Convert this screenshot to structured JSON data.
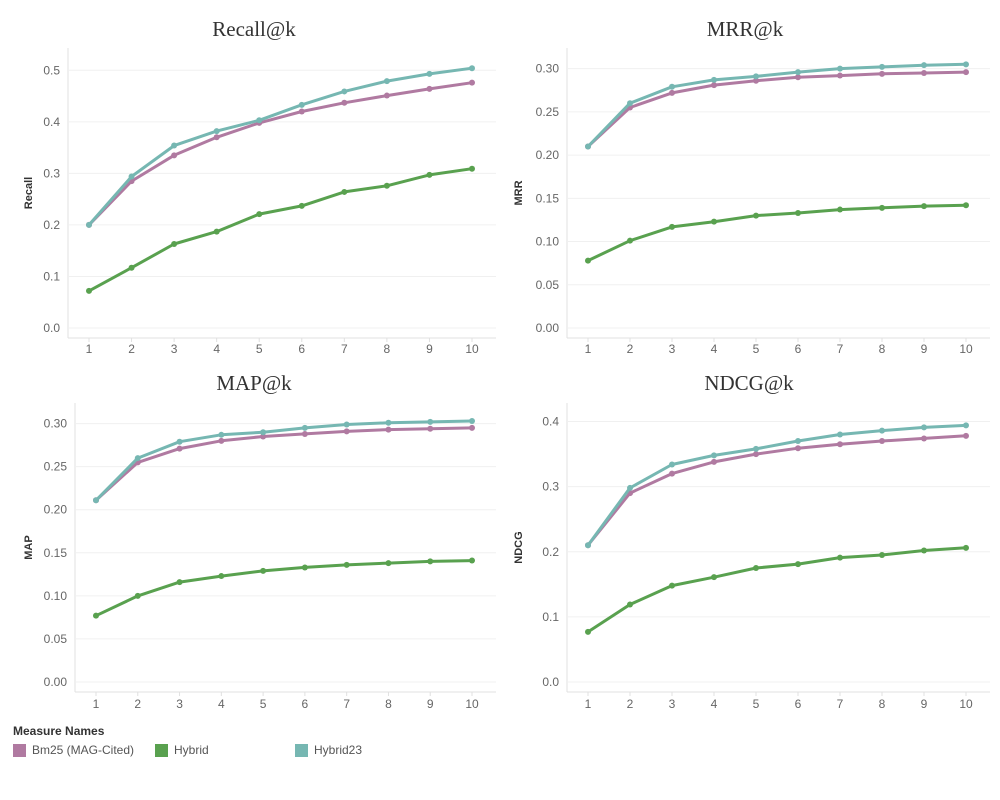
{
  "legend": {
    "title": "Measure Names",
    "items": [
      {
        "name": "Bm25 (MAG-Cited)",
        "color": "#b07aa1"
      },
      {
        "name": "Hybrid",
        "color": "#59a14f"
      },
      {
        "name": "Hybrid23",
        "color": "#76b7b2"
      }
    ]
  },
  "chart_data": [
    {
      "type": "line",
      "title": "Recall@k",
      "xlabel": "",
      "ylabel": "Recall",
      "x": [
        1,
        2,
        3,
        4,
        5,
        6,
        7,
        8,
        9,
        10
      ],
      "ylim": [
        0,
        0.52
      ],
      "yticks": [
        "0.0",
        "0.1",
        "0.2",
        "0.3",
        "0.4",
        "0.5"
      ],
      "grid": true,
      "series": [
        {
          "name": "Bm25 (MAG-Cited)",
          "color": "#b07aa1",
          "values": [
            0.2,
            0.285,
            0.335,
            0.37,
            0.398,
            0.42,
            0.437,
            0.451,
            0.464,
            0.476
          ]
        },
        {
          "name": "Hybrid",
          "color": "#59a14f",
          "values": [
            0.072,
            0.117,
            0.163,
            0.187,
            0.221,
            0.237,
            0.264,
            0.276,
            0.297,
            0.309
          ]
        },
        {
          "name": "Hybrid23",
          "color": "#76b7b2",
          "values": [
            0.2,
            0.294,
            0.354,
            0.382,
            0.403,
            0.433,
            0.459,
            0.479,
            0.493,
            0.504
          ]
        }
      ]
    },
    {
      "type": "line",
      "title": "MRR@k",
      "xlabel": "",
      "ylabel": "MRR",
      "x": [
        1,
        2,
        3,
        4,
        5,
        6,
        7,
        8,
        9,
        10
      ],
      "ylim": [
        0,
        0.31
      ],
      "yticks": [
        "0.00",
        "0.05",
        "0.10",
        "0.15",
        "0.20",
        "0.25",
        "0.30"
      ],
      "grid": true,
      "series": [
        {
          "name": "Bm25 (MAG-Cited)",
          "color": "#b07aa1",
          "values": [
            0.21,
            0.255,
            0.272,
            0.281,
            0.286,
            0.29,
            0.292,
            0.294,
            0.295,
            0.296
          ]
        },
        {
          "name": "Hybrid",
          "color": "#59a14f",
          "values": [
            0.078,
            0.101,
            0.117,
            0.123,
            0.13,
            0.133,
            0.137,
            0.139,
            0.141,
            0.142
          ]
        },
        {
          "name": "Hybrid23",
          "color": "#76b7b2",
          "values": [
            0.21,
            0.26,
            0.279,
            0.287,
            0.291,
            0.296,
            0.3,
            0.302,
            0.304,
            0.305
          ]
        }
      ]
    },
    {
      "type": "line",
      "title": "MAP@k",
      "xlabel": "",
      "ylabel": "MAP",
      "x": [
        1,
        2,
        3,
        4,
        5,
        6,
        7,
        8,
        9,
        10
      ],
      "ylim": [
        0,
        0.31
      ],
      "yticks": [
        "0.00",
        "0.05",
        "0.10",
        "0.15",
        "0.20",
        "0.25",
        "0.30"
      ],
      "grid": true,
      "series": [
        {
          "name": "Bm25 (MAG-Cited)",
          "color": "#b07aa1",
          "values": [
            0.211,
            0.255,
            0.271,
            0.28,
            0.285,
            0.288,
            0.291,
            0.293,
            0.294,
            0.295
          ]
        },
        {
          "name": "Hybrid",
          "color": "#59a14f",
          "values": [
            0.077,
            0.1,
            0.116,
            0.123,
            0.129,
            0.133,
            0.136,
            0.138,
            0.14,
            0.141
          ]
        },
        {
          "name": "Hybrid23",
          "color": "#76b7b2",
          "values": [
            0.211,
            0.26,
            0.279,
            0.287,
            0.29,
            0.295,
            0.299,
            0.301,
            0.302,
            0.303
          ]
        }
      ]
    },
    {
      "type": "line",
      "title": "NDCG@k",
      "xlabel": "",
      "ylabel": "NDCG",
      "x": [
        1,
        2,
        3,
        4,
        5,
        6,
        7,
        8,
        9,
        10
      ],
      "ylim": [
        0,
        0.41
      ],
      "yticks": [
        "0.0",
        "0.1",
        "0.2",
        "0.3",
        "0.4"
      ],
      "grid": true,
      "series": [
        {
          "name": "Bm25 (MAG-Cited)",
          "color": "#b07aa1",
          "values": [
            0.21,
            0.29,
            0.32,
            0.338,
            0.35,
            0.359,
            0.365,
            0.37,
            0.374,
            0.378
          ]
        },
        {
          "name": "Hybrid",
          "color": "#59a14f",
          "values": [
            0.077,
            0.119,
            0.148,
            0.161,
            0.175,
            0.181,
            0.191,
            0.195,
            0.202,
            0.206
          ]
        },
        {
          "name": "Hybrid23",
          "color": "#76b7b2",
          "values": [
            0.21,
            0.298,
            0.334,
            0.348,
            0.358,
            0.37,
            0.38,
            0.386,
            0.391,
            0.394
          ]
        }
      ]
    }
  ]
}
